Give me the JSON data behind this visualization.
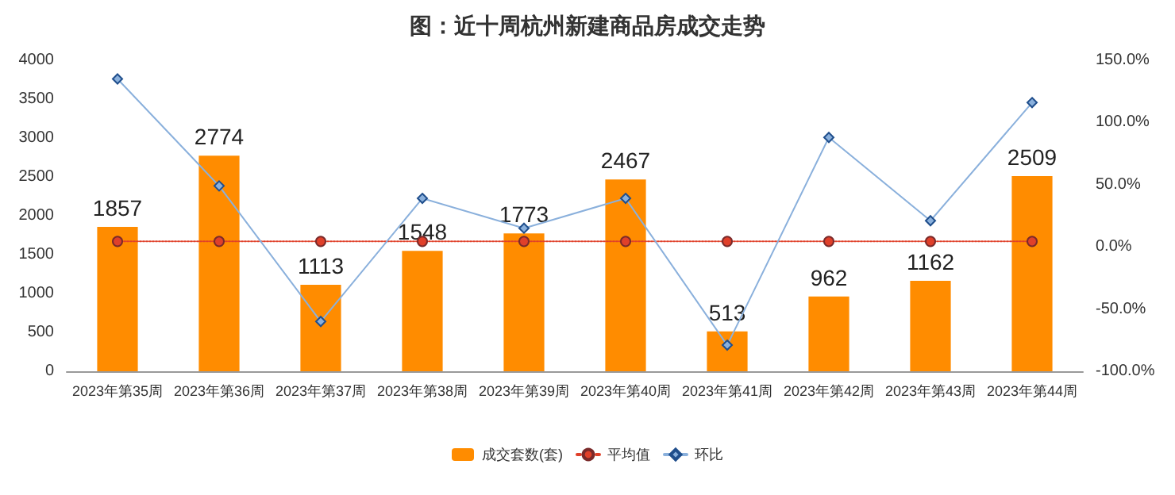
{
  "chart_data": {
    "type": "bar",
    "title": "图：近十周杭州新建商品房成交走势",
    "categories": [
      "2023年第35周",
      "2023年第36周",
      "2023年第37周",
      "2023年第38周",
      "2023年第39周",
      "2023年第40周",
      "2023年第41周",
      "2023年第42周",
      "2023年第43周",
      "2023年第44周"
    ],
    "series": [
      {
        "name": "成交套数(套)",
        "color": "#ff8c00",
        "values": [
          1857,
          2774,
          1113,
          1548,
          1773,
          2467,
          513,
          962,
          1162,
          2509
        ],
        "data_labels": true
      },
      {
        "name": "平均值",
        "type": "line",
        "color": "#e0402a",
        "marker": "circle",
        "line_style": "dotted",
        "values": [
          1670,
          1670,
          1670,
          1670,
          1670,
          1670,
          1670,
          1670,
          1670,
          1670
        ]
      },
      {
        "name": "环比",
        "type": "line",
        "axis": "y2",
        "color": "#8ab0dc",
        "marker": "diamond",
        "line_style": "solid",
        "values": [
          135,
          49,
          -60,
          39,
          15,
          39,
          -79,
          88,
          21,
          116
        ]
      }
    ],
    "ylim": [
      0,
      4000
    ],
    "yticks": [
      0,
      500,
      1000,
      1500,
      2000,
      2500,
      3000,
      3500,
      4000
    ],
    "y2lim": [
      -100,
      150
    ],
    "y2ticks": [
      {
        "value": -100,
        "label": "-100.0%"
      },
      {
        "value": -50,
        "label": "-50.0%"
      },
      {
        "value": 0,
        "label": "0.0%"
      },
      {
        "value": 50,
        "label": "50.0%"
      },
      {
        "value": 100,
        "label": "100.0%"
      },
      {
        "value": 150,
        "label": "150.0%"
      }
    ],
    "grid": false,
    "legend": "bottom"
  }
}
